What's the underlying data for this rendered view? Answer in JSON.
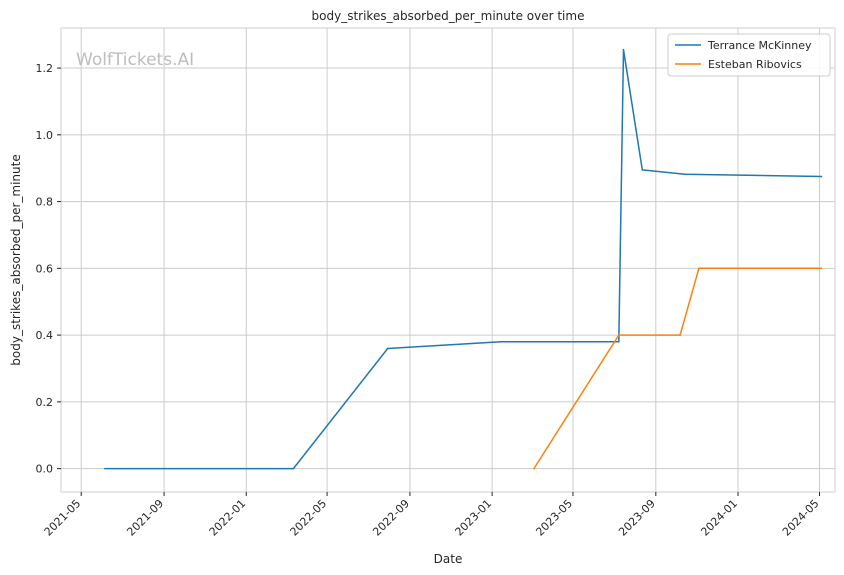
{
  "chart_data": {
    "type": "line",
    "title": "body_strikes_absorbed_per_minute over time",
    "xlabel": "Date",
    "ylabel": "body_strikes_absorbed_per_minute",
    "watermark": "WolfTickets.AI",
    "xlim": [
      "2021-04-01",
      "2024-05-24"
    ],
    "ylim": [
      -0.07,
      1.32
    ],
    "x_ticks": [
      "2021-05",
      "2021-09",
      "2022-01",
      "2022-05",
      "2022-09",
      "2023-01",
      "2023-05",
      "2023-09",
      "2024-01",
      "2024-05"
    ],
    "y_ticks": [
      "0.0",
      "0.2",
      "0.4",
      "0.6",
      "0.8",
      "1.0",
      "1.2"
    ],
    "grid": true,
    "legend_position": "top-right",
    "series": [
      {
        "name": "Terrance McKinney",
        "color": "#1f77b4",
        "points": [
          {
            "x": "2021-06-05",
            "y": 0.0
          },
          {
            "x": "2022-03-12",
            "y": 0.0
          },
          {
            "x": "2022-07-30",
            "y": 0.36
          },
          {
            "x": "2023-01-14",
            "y": 0.38
          },
          {
            "x": "2023-07-08",
            "y": 0.38
          },
          {
            "x": "2023-07-15",
            "y": 1.255
          },
          {
            "x": "2023-08-12",
            "y": 0.895
          },
          {
            "x": "2023-10-14",
            "y": 0.882
          },
          {
            "x": "2024-05-04",
            "y": 0.875
          }
        ]
      },
      {
        "name": "Esteban Ribovics",
        "color": "#ff7f0e",
        "points": [
          {
            "x": "2023-03-04",
            "y": 0.0
          },
          {
            "x": "2023-07-08",
            "y": 0.4
          },
          {
            "x": "2023-10-07",
            "y": 0.4
          },
          {
            "x": "2023-11-04",
            "y": 0.6
          },
          {
            "x": "2024-05-04",
            "y": 0.6
          }
        ]
      }
    ]
  }
}
